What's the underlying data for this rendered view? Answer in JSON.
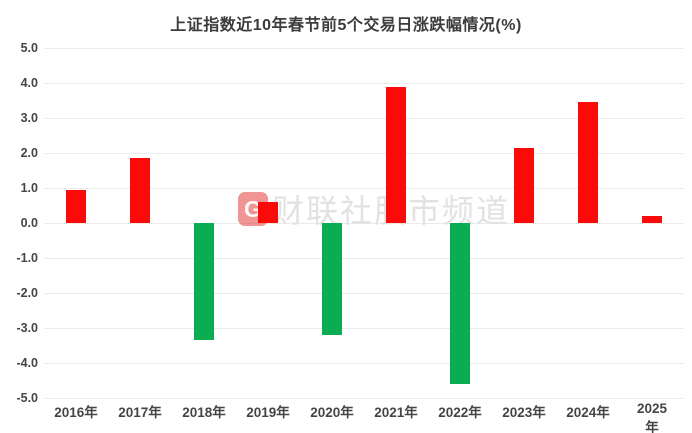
{
  "chart_data": {
    "type": "bar",
    "title": "上证指数近10年春节前5个交易日涨跌幅情况(%)",
    "categories": [
      "2016年",
      "2017年",
      "2018年",
      "2019年",
      "2020年",
      "2021年",
      "2022年",
      "2023年",
      "2024年",
      "2025年"
    ],
    "values": [
      0.95,
      1.85,
      -3.35,
      0.6,
      -3.2,
      3.9,
      -4.6,
      2.15,
      3.45,
      0.2
    ],
    "xlabel": "",
    "ylabel": "",
    "ylim": [
      -5.0,
      5.0
    ],
    "y_tick_step": 1.0,
    "y_ticks": [
      "5.0",
      "4.0",
      "3.0",
      "2.0",
      "1.0",
      "0.0",
      "-1.0",
      "-2.0",
      "-3.0",
      "-4.0",
      "-5.0"
    ],
    "grid": true,
    "legend": "none",
    "colors": {
      "positive_bar": "#fb0a0a",
      "negative_bar": "#0cad52",
      "gridline": "#ebebeb",
      "title_text": "#3c3c3c",
      "axis_text": "#454545"
    }
  },
  "watermark": {
    "logo_glyph": "G",
    "text": "财联社股市频道"
  }
}
